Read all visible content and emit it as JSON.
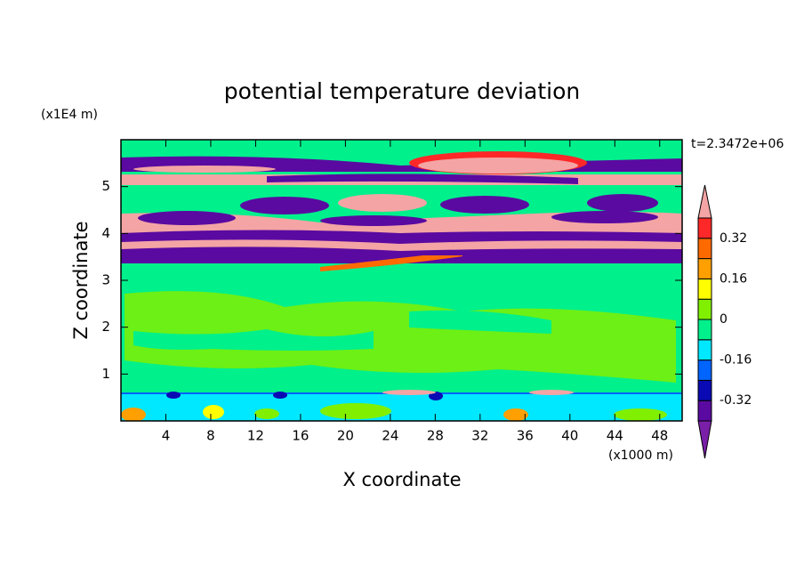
{
  "chart_data": {
    "type": "contour",
    "title": "potential temperature deviation",
    "time_label": "t=2.3472e+06",
    "x_label": "X coordinate",
    "y_label": "Z coordinate",
    "x_unit": "(x1000 m)",
    "y_unit": "(x1E4 m)",
    "xlim": [
      0,
      50
    ],
    "ylim": [
      0,
      6
    ],
    "xticks": [
      4,
      8,
      12,
      16,
      20,
      24,
      28,
      32,
      36,
      40,
      44,
      48
    ],
    "yticks": [
      1,
      2,
      3,
      4,
      5
    ],
    "colorbar": {
      "levels": [
        -0.4,
        -0.32,
        -0.24,
        -0.16,
        -0.08,
        0,
        0.08,
        0.16,
        0.24,
        0.32,
        0.4
      ],
      "labeled_levels": [
        -0.32,
        -0.16,
        0,
        0.16,
        0.32
      ],
      "colors": [
        "#7a1fa8",
        "#5a0aa0",
        "#0a0ab4",
        "#0064ff",
        "#00e8ff",
        "#00f08c",
        "#80f000",
        "#ffff00",
        "#ffa000",
        "#ff6a00",
        "#ff2828",
        "#f4a4a4"
      ]
    }
  }
}
